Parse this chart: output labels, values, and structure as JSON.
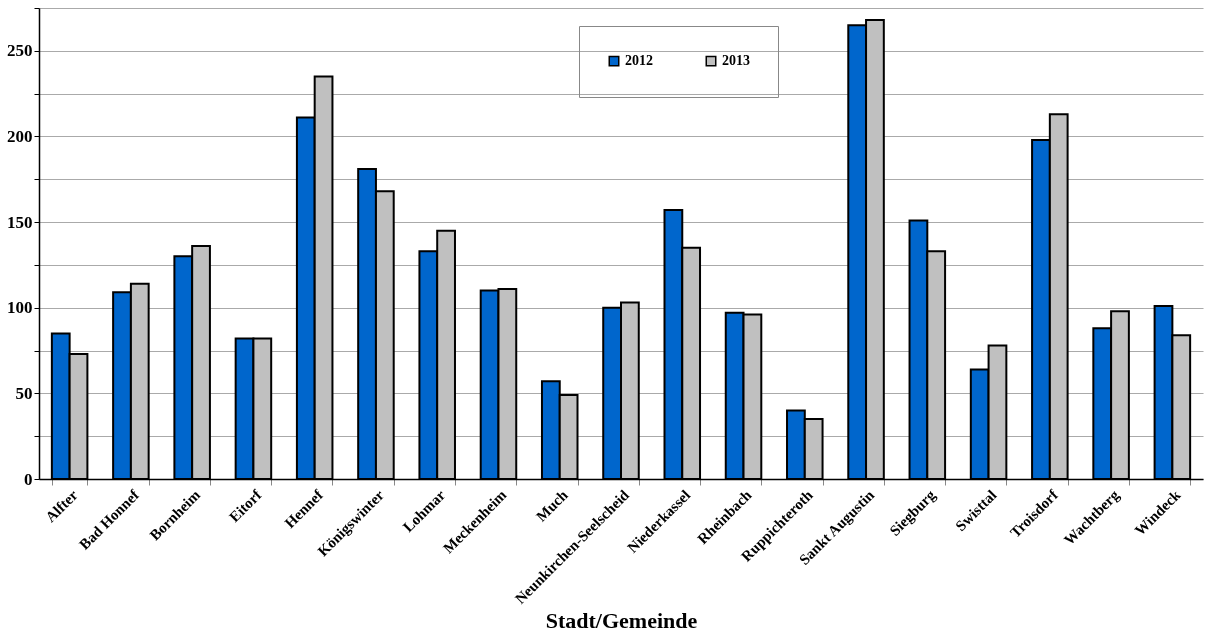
{
  "chart_data": {
    "type": "bar",
    "xlabel": "Stadt/Gemeinde",
    "categories": [
      "Alfter",
      "Bad Honnef",
      "Bornheim",
      "Eitorf",
      "Hennef",
      "Königswinter",
      "Lohmar",
      "Meckenheim",
      "Much",
      "Neunkirchen-Seelscheid",
      "Niederkassel",
      "Rheinbach",
      "Ruppichteroth",
      "Sankt Augustin",
      "Siegburg",
      "Swisttal",
      "Troisdorf",
      "Wachtberg",
      "Windeck"
    ],
    "series": [
      {
        "name": "2012",
        "color": "#0066cc",
        "values": [
          85,
          109,
          130,
          82,
          211,
          181,
          133,
          110,
          57,
          100,
          157,
          97,
          40,
          265,
          151,
          64,
          198,
          88,
          101
        ]
      },
      {
        "name": "2013",
        "color": "#c0c0c0",
        "values": [
          73,
          114,
          136,
          82,
          235,
          168,
          145,
          111,
          49,
          103,
          135,
          96,
          35,
          268,
          133,
          78,
          213,
          98,
          84
        ]
      }
    ],
    "ylim": [
      0,
      275
    ],
    "yticks": [
      0,
      {
        "value": 25,
        "label": null
      },
      50,
      {
        "value": 75,
        "label": null
      },
      100,
      {
        "value": 125,
        "label": null
      },
      150,
      {
        "value": 175,
        "label": null
      },
      200,
      {
        "value": 225,
        "label": null
      },
      250,
      {
        "value": 275,
        "label": null
      }
    ],
    "grid": "y",
    "legend": "top right"
  }
}
